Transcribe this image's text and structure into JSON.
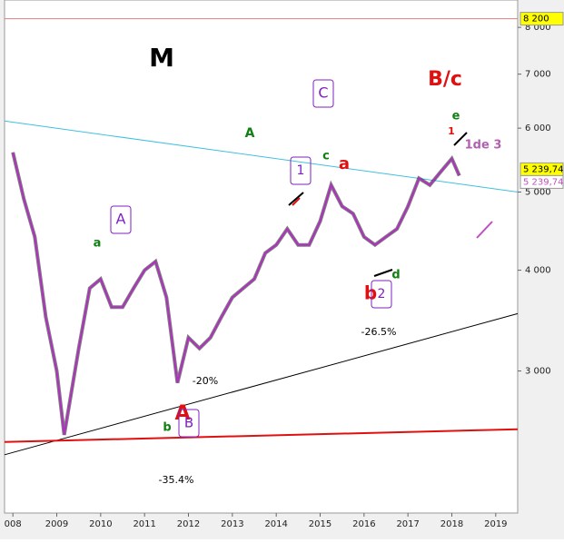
{
  "chart_data": {
    "type": "line",
    "log_scale": true,
    "xlim": [
      2007.81,
      2019.5
    ],
    "ylim": [
      2000,
      8650
    ],
    "xticks": [
      {
        "value": 2008,
        "label": "008"
      },
      2009,
      2010,
      2011,
      2012,
      2013,
      2014,
      2015,
      2016,
      2017,
      2018,
      2019
    ],
    "yticks": [
      {
        "value": 3000,
        "label": "3 000"
      },
      {
        "value": 4000,
        "label": "4 000"
      },
      {
        "value": 5000,
        "label": "5 000"
      },
      {
        "value": 6000,
        "label": "6 000"
      },
      {
        "value": 7000,
        "label": "7 000"
      },
      {
        "value": 8000,
        "label": "8 000"
      }
    ],
    "series": [
      {
        "color": "#b030c0",
        "x": [
          2008.0,
          2008.25,
          2008.5,
          2008.75,
          2009.0,
          2009.17,
          2009.5,
          2009.75,
          2010.0,
          2010.25,
          2010.5,
          2010.75,
          2011.0,
          2011.25,
          2011.5,
          2011.75,
          2012.0,
          2012.25,
          2012.5,
          2012.75,
          2013.0,
          2013.25,
          2013.5,
          2013.75,
          2014.0,
          2014.25,
          2014.5,
          2014.75,
          2015.0,
          2015.25,
          2015.5,
          2015.75,
          2016.0,
          2016.25,
          2016.5,
          2016.75,
          2017.0,
          2017.25,
          2017.5,
          2017.75,
          2018.0,
          2018.17
        ],
        "values": [
          5600,
          4900,
          4400,
          3500,
          3000,
          2500,
          3200,
          3800,
          3900,
          3600,
          3600,
          3800,
          4000,
          4100,
          3700,
          2900,
          3300,
          3200,
          3300,
          3500,
          3700,
          3800,
          3900,
          4200,
          4300,
          4500,
          4300,
          4300,
          4600,
          5100,
          4800,
          4700,
          4400,
          4300,
          4400,
          4500,
          4800,
          5200,
          5100,
          5300,
          5500,
          5240
        ]
      }
    ],
    "trend_lines": [
      {
        "color": "#40c0e0",
        "x": [
          2007.81,
          2019.5
        ],
        "values": [
          6123,
          5000
        ]
      },
      {
        "color": "#000000",
        "x": [
          2007.81,
          2019.5
        ],
        "values": [
          2362,
          3534
        ]
      },
      {
        "color": "#e01010",
        "x": [
          2007.81,
          2019.5
        ],
        "values": [
          2450,
          2540
        ]
      },
      {
        "color": "#e08080",
        "x": [
          2007.81,
          2019.5
        ],
        "values": [
          8200,
          8200
        ]
      }
    ],
    "price_tags": [
      {
        "value": 8200,
        "label": "8 200",
        "color": "#ffff00"
      },
      {
        "value": 5239.74,
        "label": "5 239,74",
        "color": "#ffff00"
      },
      {
        "value": 5239.74,
        "label": "5 239,74",
        "color": "#ffffff"
      }
    ],
    "annotations": [
      "M",
      "B/c",
      "C",
      "A",
      "e",
      "1",
      "1de 3",
      "c",
      "a",
      "1",
      "A",
      "a",
      "d",
      "b",
      "2",
      "-26.5%",
      "-20%",
      "A",
      "B",
      "b",
      "-35.4%"
    ]
  }
}
